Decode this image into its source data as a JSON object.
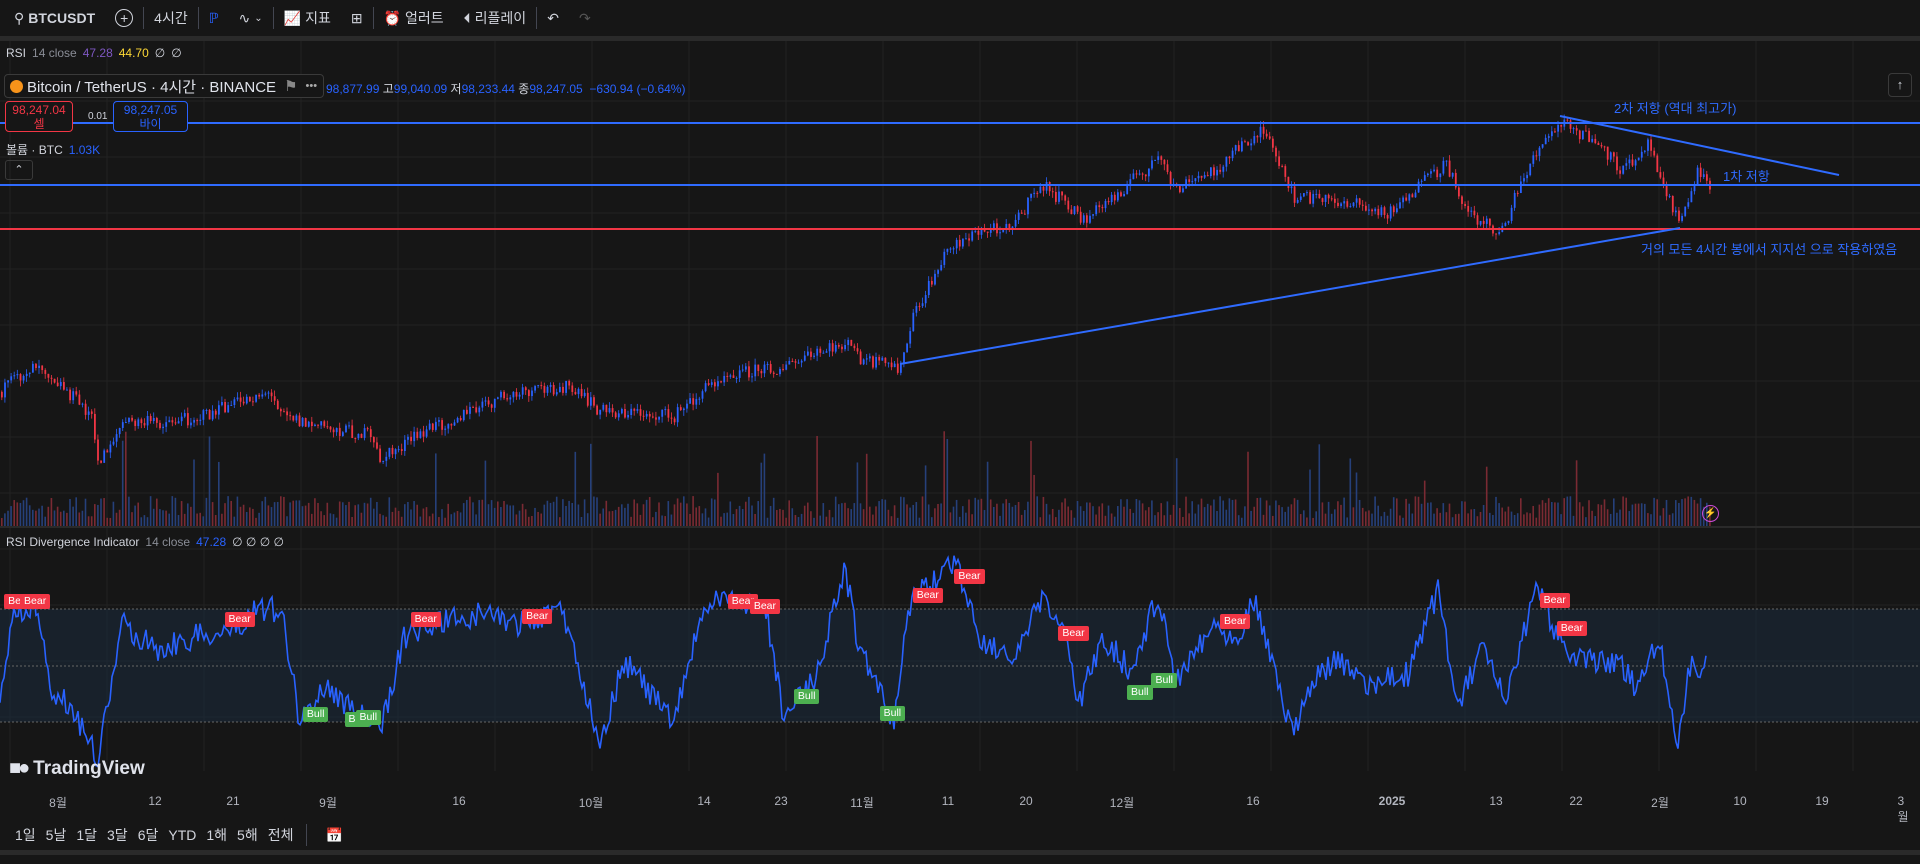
{
  "toolbar": {
    "symbol": "BTCUSDT",
    "interval": "4시간",
    "indicators": "지표",
    "alert": "얼러트",
    "replay": "리플레이"
  },
  "rsi_legend": {
    "name": "RSI",
    "params": "14 close",
    "v1": "47.28",
    "v2": "44.70",
    "n1": "∅",
    "n2": "∅"
  },
  "symbol": {
    "title": "Bitcoin / TetherUS · 4시간 · BINANCE",
    "open": "98,877.99",
    "high_label": "고",
    "high": "99,040.09",
    "low_label": "저",
    "low": "98,233.44",
    "close_label": "종",
    "close": "98,247.05",
    "change": "−630.94 (−0.64%)"
  },
  "trade": {
    "sell_price": "98,247.04",
    "sell_label": "셀",
    "spread": "0.01",
    "buy_price": "98,247.05",
    "buy_label": "바이"
  },
  "volume_legend": {
    "name": "볼륨 · BTC",
    "value": "1.03K"
  },
  "annotations": {
    "resistance2": "2차 저항 (역대 최고가)",
    "resistance1": "1차 저항",
    "support": "거의 모든 4시간 봉에서 지지선 으로 작용하였음"
  },
  "rsi_div_legend": {
    "name": "RSI Divergence Indicator",
    "params": "14 close",
    "value": "47.28",
    "flags": "∅ ∅ ∅ ∅"
  },
  "signals": [
    "Bear",
    "Bear",
    "Bear",
    "Bear",
    "Bear",
    "Bear",
    "Bear",
    "Bear",
    "Bear",
    "Bear",
    "Bear",
    "Bear",
    "Bear",
    "Bull",
    "Bull",
    "Bull",
    "Bull",
    "Bull",
    "Bull",
    "Bull"
  ],
  "x_axis": [
    "8월",
    "12",
    "21",
    "9월",
    "16",
    "10월",
    "14",
    "23",
    "11월",
    "11",
    "20",
    "12월",
    "16",
    "2025",
    "13",
    "22",
    "2월",
    "10",
    "19",
    "3월"
  ],
  "ranges": [
    "1일",
    "5날",
    "1달",
    "3달",
    "6달",
    "YTD",
    "1해",
    "5해",
    "전체"
  ],
  "brand": "TradingView",
  "colors": {
    "resistance": "#2f6bff",
    "support": "#f23645",
    "rsi": "#2962ff",
    "up": "#2962ff",
    "down": "#f23645"
  }
}
